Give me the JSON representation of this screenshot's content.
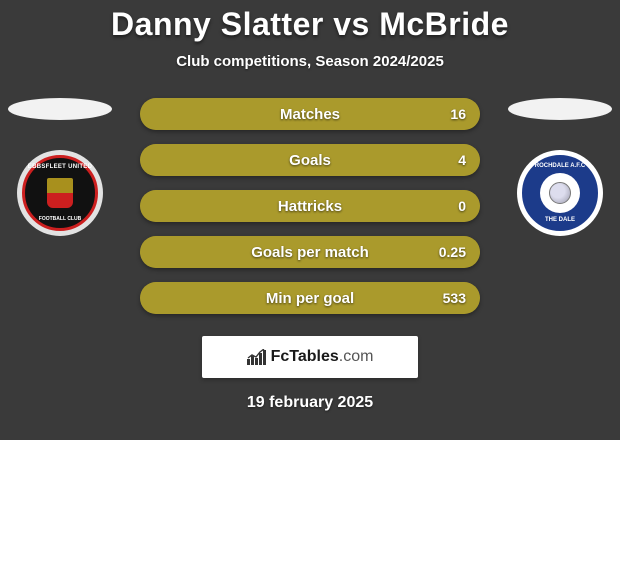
{
  "title": "Danny Slatter vs McBride",
  "subtitle": "Club competitions, Season 2024/2025",
  "date": "19 february 2025",
  "colors": {
    "card_bg": "#3a3a3a",
    "bar_fill": "#aa9a2c",
    "bar_track": "#968828",
    "text": "#ffffff",
    "logo_bg": "#ffffff",
    "ellipse": "#f2f2f2"
  },
  "bars": [
    {
      "label": "Matches",
      "value": "16",
      "fill_pct": 100
    },
    {
      "label": "Goals",
      "value": "4",
      "fill_pct": 100
    },
    {
      "label": "Hattricks",
      "value": "0",
      "fill_pct": 100
    },
    {
      "label": "Goals per match",
      "value": "0.25",
      "fill_pct": 100
    },
    {
      "label": "Min per goal",
      "value": "533",
      "fill_pct": 100
    }
  ],
  "badges": {
    "left": {
      "ring_color": "#cc1f1f",
      "inner_bg": "#111111",
      "outer_bg": "#e2e2e2",
      "top_text": "EBBSFLEET UNITED",
      "bottom_text": "FOOTBALL CLUB"
    },
    "right": {
      "outer_bg": "#ffffff",
      "inner_bg": "#1c3b8a",
      "top_text": "ROCHDALE A.F.C",
      "bottom_text": "THE DALE"
    }
  },
  "logo": {
    "brand": "FcTables",
    "domain": ".com"
  }
}
